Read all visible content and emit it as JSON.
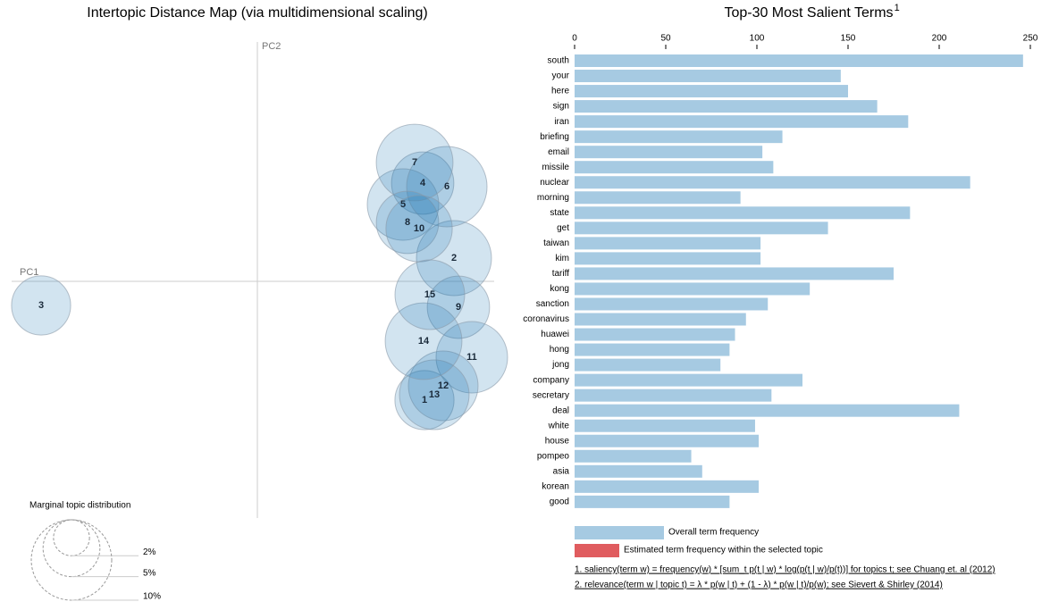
{
  "chart_data": [
    {
      "type": "scatter",
      "title": "Intertopic Distance Map (via multidimensional scaling)",
      "xlabel": "PC1",
      "ylabel": "PC2",
      "labels": [
        "1",
        "2",
        "3",
        "4",
        "5",
        "6",
        "7",
        "8",
        "9",
        "10",
        "11",
        "12",
        "13",
        "14",
        "15"
      ],
      "x": [
        0.187,
        0.22,
        -0.242,
        0.185,
        0.163,
        0.212,
        0.176,
        0.168,
        0.225,
        0.181,
        0.24,
        0.208,
        0.198,
        0.186,
        0.193
      ],
      "y": [
        -0.133,
        0.026,
        -0.027,
        0.11,
        0.086,
        0.106,
        0.133,
        0.066,
        -0.029,
        0.059,
        -0.085,
        -0.117,
        -0.127,
        -0.067,
        -0.015
      ],
      "sizes": [
        5.4,
        8.7,
        5.4,
        6.0,
        7.9,
        10.0,
        9.1,
        6.0,
        6.0,
        6.8,
        7.9,
        7.5,
        7.5,
        9.1,
        7.5
      ],
      "color": "#1f77b4",
      "opacity": 0.2,
      "xlim": [
        -0.275,
        0.265
      ],
      "ylim": [
        -0.265,
        0.268
      ],
      "size_legend": {
        "title": "Marginal topic distribution",
        "values": [
          {
            "value": 2,
            "label": "2%"
          },
          {
            "value": 5,
            "label": "5%"
          },
          {
            "value": 10,
            "label": "10%"
          }
        ]
      }
    },
    {
      "type": "hbar",
      "title": "Top-30 Most Salient Terms",
      "title_note": "1",
      "categories": [
        "south",
        "your",
        "here",
        "sign",
        "iran",
        "briefing",
        "email",
        "missile",
        "nuclear",
        "morning",
        "state",
        "get",
        "taiwan",
        "kim",
        "tariff",
        "kong",
        "sanction",
        "coronavirus",
        "huawei",
        "hong",
        "jong",
        "company",
        "secretary",
        "deal",
        "white",
        "house",
        "pompeo",
        "asia",
        "korean",
        "good"
      ],
      "series": [
        {
          "name": "Overall term frequency",
          "color": "#a6cae2",
          "values": [
            246,
            146,
            150,
            166,
            183,
            114,
            103,
            109,
            217,
            91,
            184,
            139,
            102,
            102,
            175,
            129,
            106,
            94,
            88,
            85,
            80,
            125,
            108,
            211,
            99,
            101,
            64,
            70,
            101,
            85
          ]
        }
      ],
      "extra_legend": [
        {
          "name": "Estimated term frequency within the selected topic",
          "color": "#e05c5f"
        }
      ],
      "xlim": [
        0,
        250
      ],
      "xticks": [
        0,
        50,
        100,
        150,
        200,
        250
      ],
      "notes": [
        "1. saliency(term w) = frequency(w) * [sum_t p(t | w) * log(p(t | w)/p(t))] for topics t; see Chuang et. al (2012)",
        "2. relevance(term w | topic t) = λ * p(w | t) + (1 - λ) * p(w | t)/p(w); see Sievert & Shirley (2014)"
      ]
    }
  ]
}
